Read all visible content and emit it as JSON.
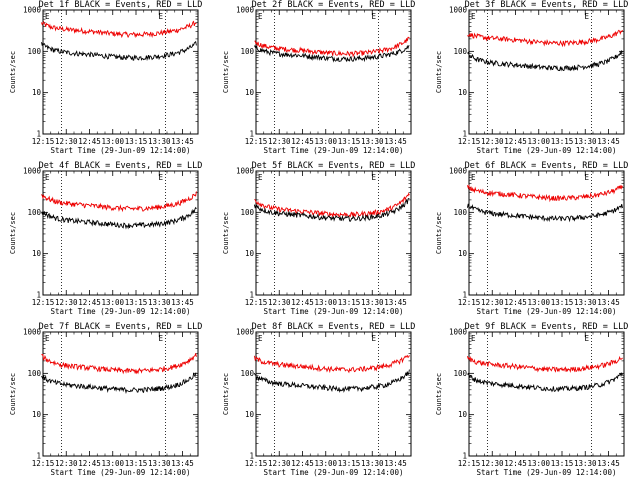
{
  "chart_data": {
    "type": "line",
    "y_scale": "log",
    "ylim": [
      1,
      1000
    ],
    "y_ticks": [
      "1",
      "10",
      "100",
      "1000"
    ],
    "ylabel": "Counts/sec",
    "x_ticks": [
      "12:15",
      "12:30",
      "12:45",
      "13:00",
      "13:15",
      "13:30",
      "13:45"
    ],
    "xlim_minutes_of_day": [
      735,
      835
    ],
    "time_window_start": "12:14:00",
    "time_window_end": "13:54",
    "xlabel": "Start Time (29-Jun-09 12:14:00)",
    "marker_label": "E",
    "marker_lines": [
      "12:27",
      "13:34"
    ],
    "grid": false,
    "series_colors": {
      "events": "#000000",
      "lld": "#ee0000"
    },
    "panels": [
      {
        "title": "Det 1f BLACK = Events, RED = LLD",
        "events": {
          "start": 140,
          "mid": 80,
          "end": 140
        },
        "lld": {
          "start": 450,
          "mid": 290,
          "end": 460
        }
      },
      {
        "title": "Det 2f BLACK = Events, RED = LLD",
        "events": {
          "start": 120,
          "mid": 75,
          "end": 120
        },
        "lld": {
          "start": 160,
          "mid": 100,
          "end": 190
        }
      },
      {
        "title": "Det 3f BLACK = Events, RED = LLD",
        "events": {
          "start": 80,
          "mid": 45,
          "end": 90
        },
        "lld": {
          "start": 250,
          "mid": 180,
          "end": 300
        }
      },
      {
        "title": "Det 4f BLACK = Events, RED = LLD",
        "events": {
          "start": 100,
          "mid": 55,
          "end": 110
        },
        "lld": {
          "start": 250,
          "mid": 140,
          "end": 260
        }
      },
      {
        "title": "Det 5f BLACK = Events, RED = LLD",
        "events": {
          "start": 140,
          "mid": 80,
          "end": 190
        },
        "lld": {
          "start": 190,
          "mid": 100,
          "end": 260
        }
      },
      {
        "title": "Det 6f BLACK = Events, RED = LLD",
        "events": {
          "start": 140,
          "mid": 80,
          "end": 130
        },
        "lld": {
          "start": 380,
          "mid": 250,
          "end": 380
        }
      },
      {
        "title": "Det 7f BLACK = Events, RED = LLD",
        "events": {
          "start": 80,
          "mid": 45,
          "end": 90
        },
        "lld": {
          "start": 250,
          "mid": 130,
          "end": 260
        }
      },
      {
        "title": "Det 8f BLACK = Events, RED = LLD",
        "events": {
          "start": 85,
          "mid": 48,
          "end": 100
        },
        "lld": {
          "start": 220,
          "mid": 140,
          "end": 260
        }
      },
      {
        "title": "Det 9f BLACK = Events, RED = LLD",
        "events": {
          "start": 85,
          "mid": 48,
          "end": 90
        },
        "lld": {
          "start": 220,
          "mid": 140,
          "end": 220
        }
      }
    ]
  }
}
